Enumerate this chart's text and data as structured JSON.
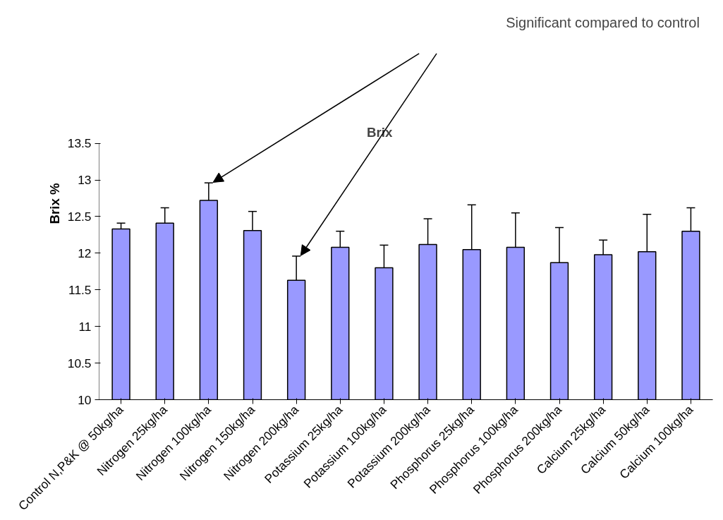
{
  "chart_data": {
    "type": "bar",
    "title": "Brix",
    "ylabel": "Brix %",
    "categories": [
      "Control N,P&K @ 50kg/ha",
      "Nitrogen 25kg/ha",
      "Nitrogen 100kg/ha",
      "Nitrogen 150kg/ha",
      "Nitrogen 200kg/ha",
      "Potassium 25kg/ha",
      "Potassium 100kg/ha",
      "Potassium 200kg/ha",
      "Phosphorus 25kg/ha",
      "Phosphorus 100kg/ha",
      "Phosphorus 200kg/ha",
      "Calcium 25kg/ha",
      "Calcium 50kg/ha",
      "Calcium 100kg/ha"
    ],
    "values": [
      12.33,
      12.41,
      12.72,
      12.31,
      11.63,
      12.08,
      11.8,
      12.12,
      12.05,
      12.08,
      11.87,
      11.98,
      12.02,
      12.3
    ],
    "errors": [
      0.08,
      0.21,
      0.24,
      0.26,
      0.33,
      0.22,
      0.31,
      0.35,
      0.61,
      0.47,
      0.48,
      0.2,
      0.51,
      0.32
    ],
    "color": "#9999ff",
    "ylim": [
      10,
      13.5
    ],
    "yticks": [
      10,
      10.5,
      11,
      11.5,
      12,
      12.5,
      13,
      13.5
    ],
    "grid": false,
    "annotations": [
      "Significant compared to control"
    ]
  }
}
